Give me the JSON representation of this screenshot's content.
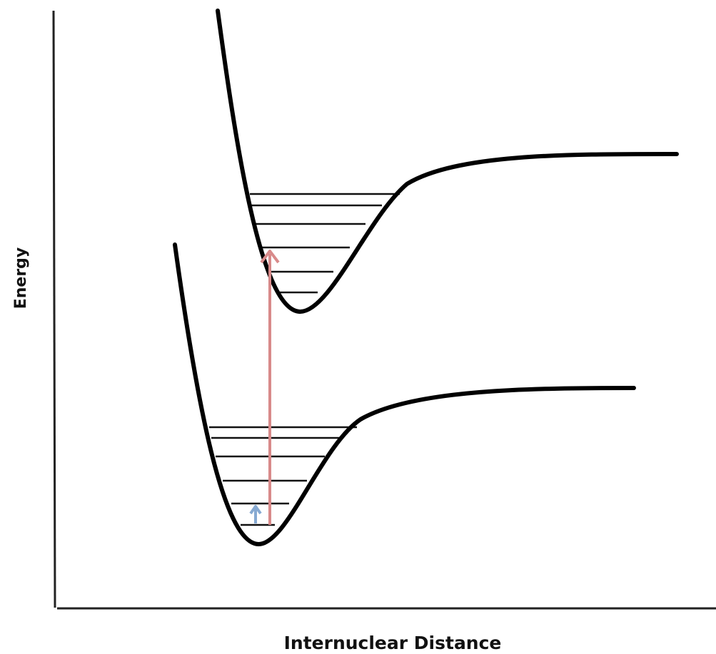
{
  "axes": {
    "y_label": "Energy",
    "x_label": "Internuclear Distance"
  }
}
